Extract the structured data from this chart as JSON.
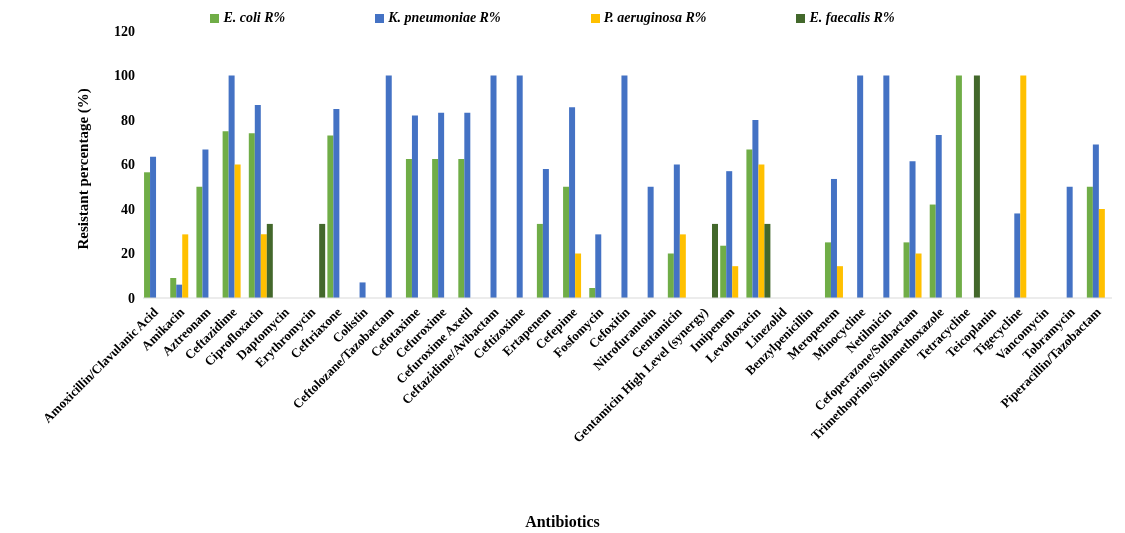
{
  "chart_data": {
    "type": "bar",
    "xlabel": "Antibiotics",
    "ylabel": "Resistant percentage (%)",
    "categories": [
      "Amoxicillin/Clavulanic Acid",
      "Amikacin",
      "Aztreonam",
      "Ceftazidime",
      "Ciprofloxacin",
      "Daptomycin",
      "Erythromycin",
      "Ceftriaxone",
      "Colistin",
      "Ceftolozane/Tazobactam",
      "Cefotaxime",
      "Cefuroxime",
      "Cefuroxime Axetil",
      "Ceftazidime/Avibactam",
      "Ceftizoxime",
      "Ertapenem",
      "Cefepime",
      "Fosfomycin",
      "Cefoxitin",
      "Nitrofurantoin",
      "Gentamicin",
      "Gentamicin High Level (synergy)",
      "Imipenem",
      "Levofloxacin",
      "Linezolid",
      "Benzylpenicillin",
      "Meropenem",
      "Minocycline",
      "Netilmicin",
      "Cefoperazone/Sulbactam",
      "Trimethoprim/Sulfamethoxazole",
      "Tetracycline",
      "Teicoplanin",
      "Tigecycline",
      "Vancomycin",
      "Tobramycin",
      "Piperacillin/Tazobactam"
    ],
    "series": [
      {
        "name": "E. coli R%",
        "color": "#70ad47",
        "values": [
          56.5,
          9,
          50,
          75,
          74,
          null,
          null,
          73,
          null,
          null,
          62.5,
          62.5,
          62.5,
          null,
          null,
          33.3,
          50,
          4.5,
          null,
          null,
          20,
          null,
          23.5,
          66.7,
          null,
          null,
          25,
          null,
          null,
          25,
          42,
          100,
          null,
          null,
          null,
          null,
          50
        ]
      },
      {
        "name": "K. pneumoniae R%",
        "color": "#4472c4",
        "values": [
          63.5,
          6,
          66.7,
          100,
          86.7,
          null,
          null,
          85,
          7,
          100,
          82,
          83.3,
          83.3,
          100,
          100,
          58,
          85.7,
          28.6,
          100,
          50,
          60,
          null,
          57,
          80,
          null,
          null,
          53.5,
          100,
          100,
          61.5,
          73.3,
          null,
          null,
          38,
          null,
          50,
          69
        ]
      },
      {
        "name": "P. aeruginosa R%",
        "color": "#ffc000",
        "values": [
          null,
          28.6,
          null,
          60,
          28.6,
          null,
          null,
          null,
          null,
          null,
          null,
          null,
          null,
          null,
          null,
          null,
          20,
          null,
          null,
          null,
          28.6,
          null,
          14.3,
          60,
          null,
          null,
          14.3,
          null,
          null,
          20,
          null,
          null,
          null,
          100,
          null,
          null,
          40
        ]
      },
      {
        "name": "E. faecalis R%",
        "color": "#43682b",
        "values": [
          null,
          null,
          null,
          null,
          33.3,
          null,
          33.3,
          null,
          null,
          null,
          null,
          null,
          null,
          null,
          null,
          null,
          null,
          null,
          null,
          null,
          null,
          33.3,
          null,
          33.3,
          null,
          null,
          null,
          null,
          null,
          null,
          null,
          100,
          null,
          null,
          null,
          null,
          null
        ]
      }
    ],
    "ylim": [
      0,
      120
    ],
    "yticks": [
      0,
      20,
      40,
      60,
      80,
      100,
      120
    ],
    "grid": false,
    "legend": "top"
  }
}
